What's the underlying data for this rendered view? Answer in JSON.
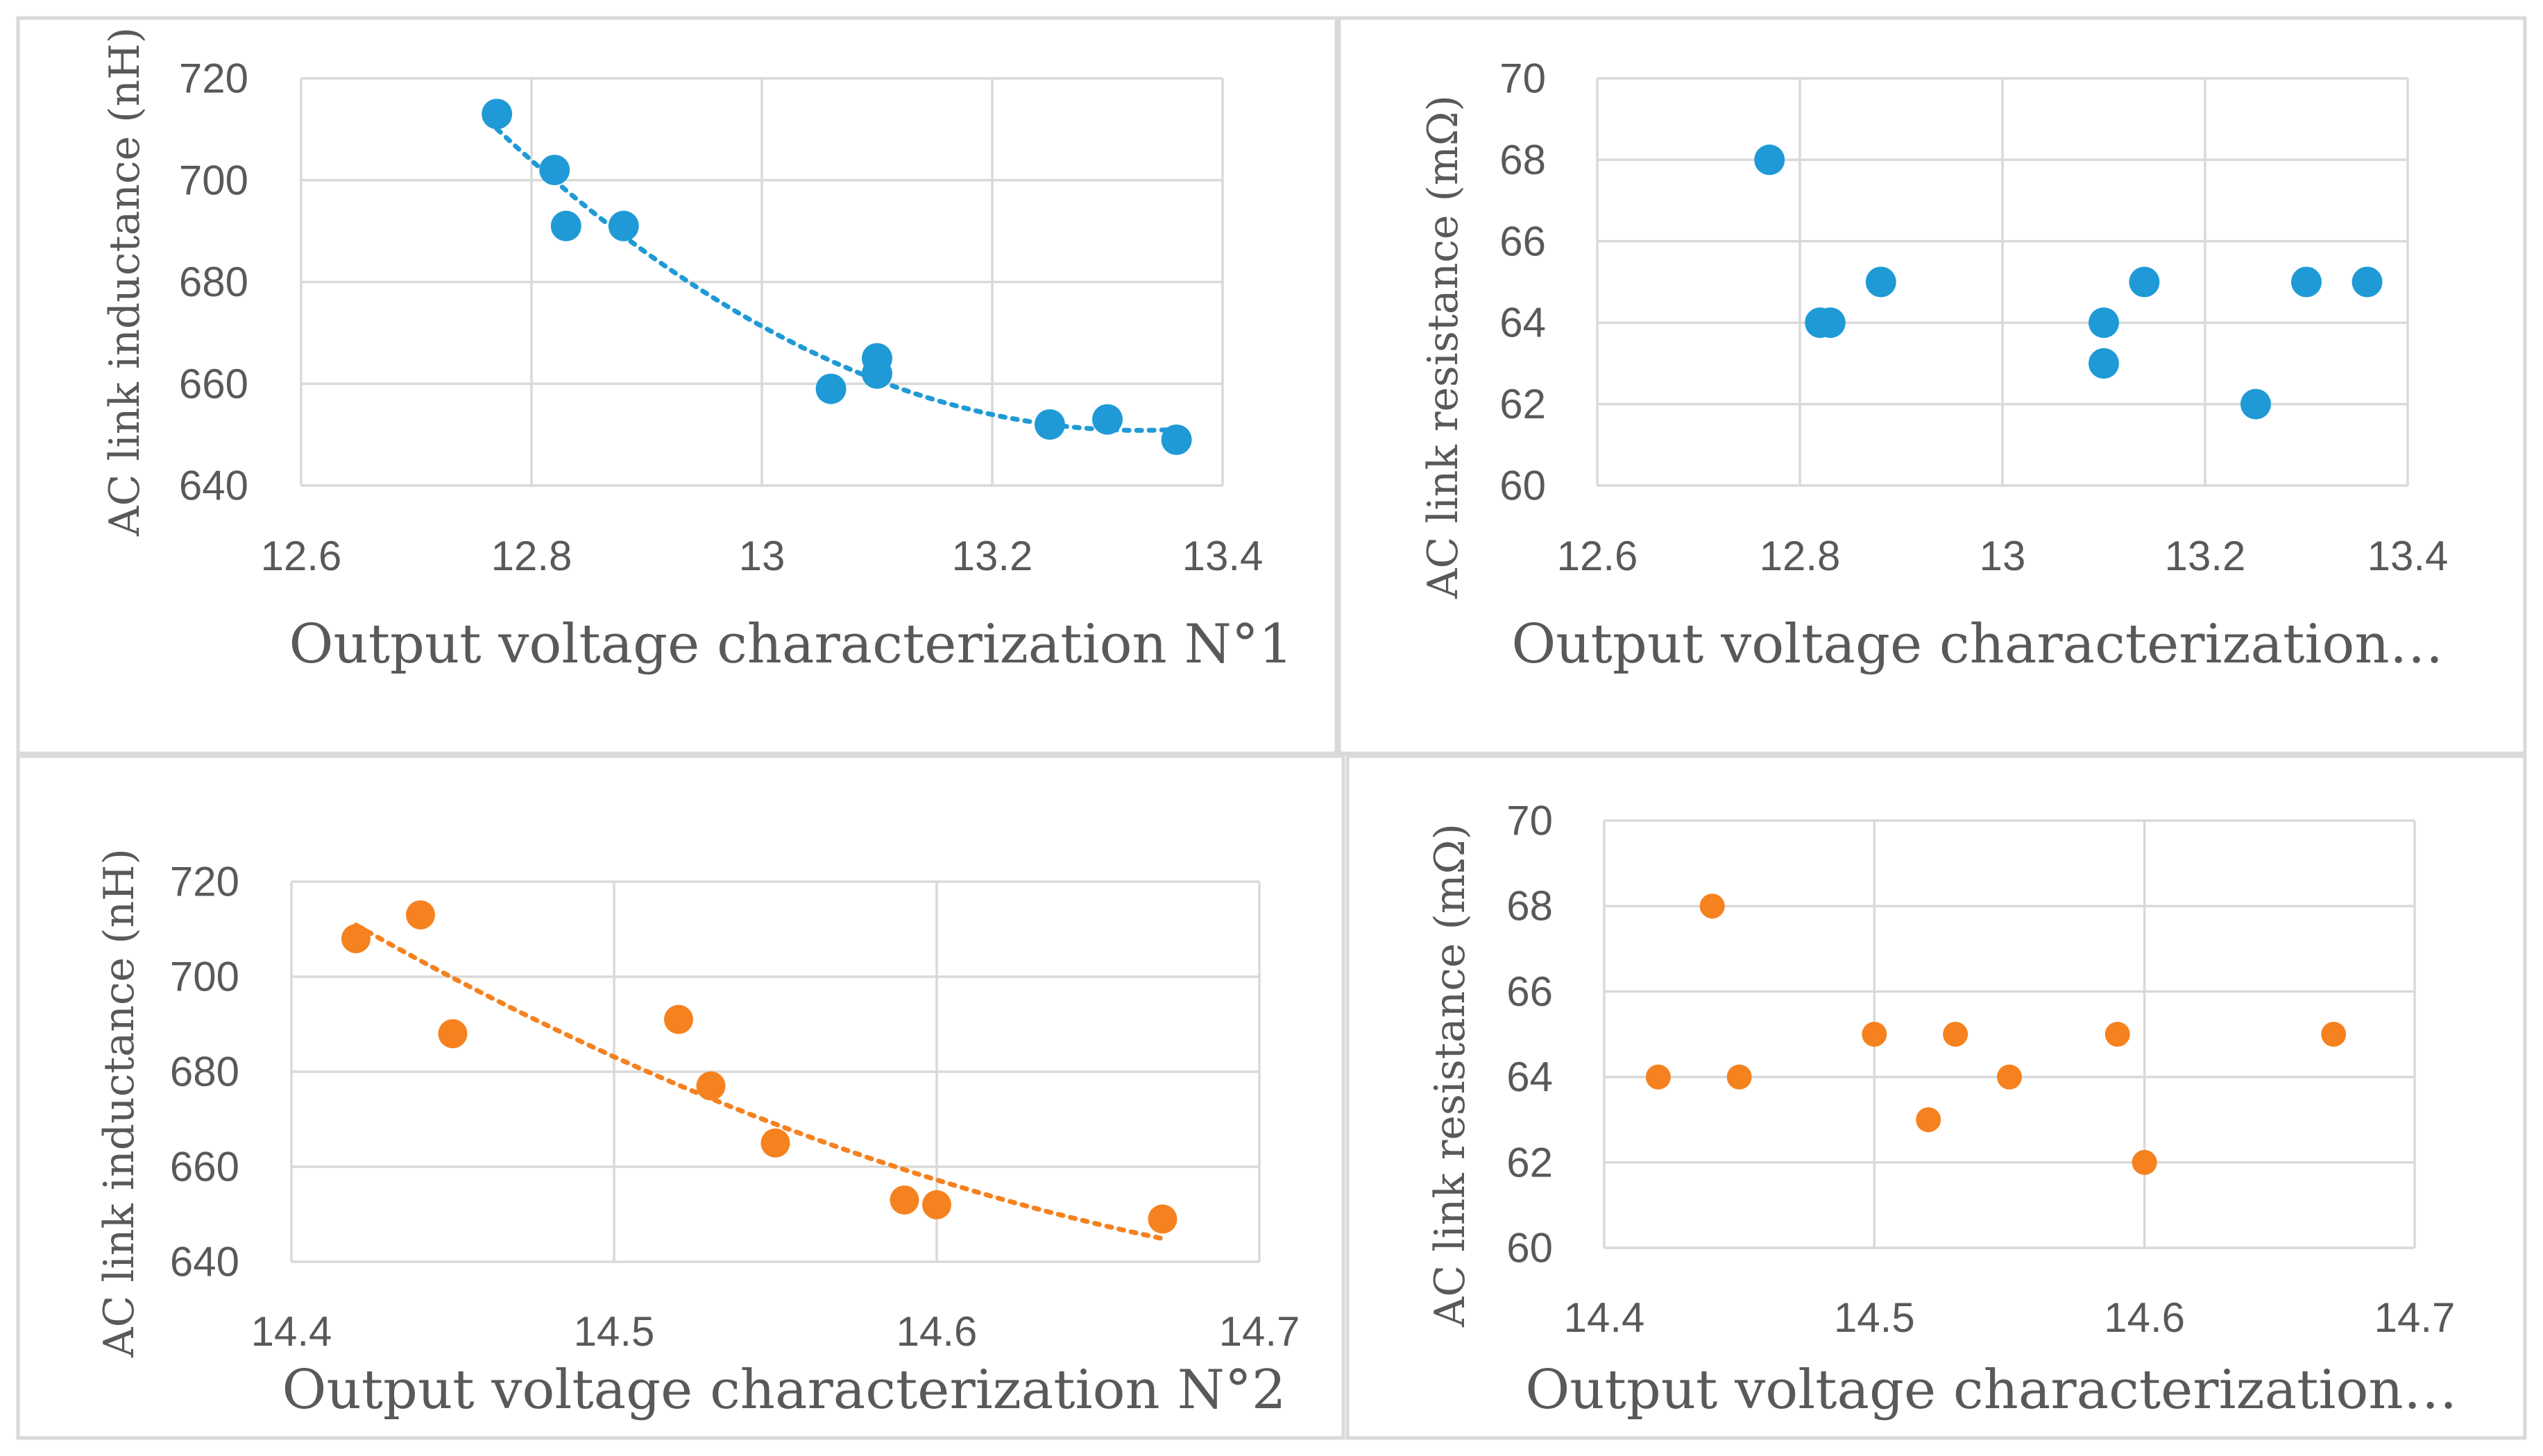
{
  "figure": {
    "colors": {
      "blue": "#1f9ad6",
      "orange": "#f5821f",
      "grid": "#d9d9d9",
      "text": "#595959"
    }
  },
  "chart_data": [
    {
      "id": "c1",
      "type": "scatter",
      "series_color": "blue",
      "xlabel": "Output voltage characterization N°1",
      "ylabel": "AC link inductance (nH)",
      "xlim": [
        12.6,
        13.4
      ],
      "ylim": [
        640,
        720
      ],
      "xticks": [
        12.6,
        12.8,
        13,
        13.2,
        13.4
      ],
      "xtick_labels": [
        "12.6",
        "12.8",
        "13",
        "13.2",
        "13.4"
      ],
      "yticks": [
        640,
        660,
        680,
        700,
        720
      ],
      "ytick_labels": [
        "640",
        "660",
        "680",
        "700",
        "720"
      ],
      "x": [
        12.77,
        12.82,
        12.83,
        12.88,
        13.06,
        13.1,
        13.1,
        13.25,
        13.3,
        13.36
      ],
      "y": [
        713,
        702,
        691,
        691,
        659,
        665,
        662,
        652,
        653,
        649
      ],
      "trendline": {
        "type": "polynomial",
        "style": "dotted",
        "x_range": [
          12.77,
          13.36
        ]
      }
    },
    {
      "id": "c2",
      "type": "scatter",
      "series_color": "blue",
      "xlabel": "Output voltage characterization…",
      "ylabel": "AC link resistance (mΩ)",
      "xlim": [
        12.6,
        13.4
      ],
      "ylim": [
        60,
        70
      ],
      "xticks": [
        12.6,
        12.8,
        13,
        13.2,
        13.4
      ],
      "xtick_labels": [
        "12.6",
        "12.8",
        "13",
        "13.2",
        "13.4"
      ],
      "yticks": [
        60,
        62,
        64,
        66,
        68,
        70
      ],
      "ytick_labels": [
        "60",
        "62",
        "64",
        "66",
        "68",
        "70"
      ],
      "x": [
        12.77,
        12.82,
        12.83,
        12.88,
        13.1,
        13.1,
        13.14,
        13.25,
        13.3,
        13.36
      ],
      "y": [
        68,
        64,
        64,
        65,
        64,
        63,
        65,
        62,
        65,
        65
      ]
    },
    {
      "id": "c3",
      "type": "scatter",
      "series_color": "orange",
      "xlabel": "Output voltage characterization N°2",
      "ylabel": "AC link inductance (nH)",
      "xlim": [
        14.4,
        14.7
      ],
      "ylim": [
        640,
        720
      ],
      "xticks": [
        14.4,
        14.5,
        14.6,
        14.7
      ],
      "xtick_labels": [
        "14.4",
        "14.5",
        "14.6",
        "14.7"
      ],
      "yticks": [
        640,
        660,
        680,
        700,
        720
      ],
      "ytick_labels": [
        "640",
        "660",
        "680",
        "700",
        "720"
      ],
      "x": [
        14.42,
        14.44,
        14.45,
        14.52,
        14.53,
        14.55,
        14.59,
        14.6,
        14.67
      ],
      "y": [
        708,
        713,
        688,
        691,
        677,
        665,
        653,
        652,
        649
      ],
      "trendline": {
        "type": "polynomial",
        "style": "dotted",
        "x_range": [
          14.42,
          14.67
        ]
      }
    },
    {
      "id": "c4",
      "type": "scatter",
      "series_color": "orange",
      "xlabel": "Output voltage characterization…",
      "ylabel": "AC link resistance (mΩ)",
      "xlim": [
        14.4,
        14.7
      ],
      "ylim": [
        60,
        70
      ],
      "xticks": [
        14.4,
        14.5,
        14.6,
        14.7
      ],
      "xtick_labels": [
        "14.4",
        "14.5",
        "14.6",
        "14.7"
      ],
      "yticks": [
        60,
        62,
        64,
        66,
        68,
        70
      ],
      "ytick_labels": [
        "60",
        "62",
        "64",
        "66",
        "68",
        "70"
      ],
      "x": [
        14.42,
        14.44,
        14.45,
        14.5,
        14.52,
        14.53,
        14.55,
        14.59,
        14.6,
        14.67
      ],
      "y": [
        64,
        68,
        64,
        65,
        63,
        65,
        64,
        65,
        62,
        65
      ]
    }
  ]
}
